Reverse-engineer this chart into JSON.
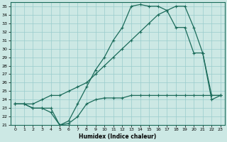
{
  "xlabel": "Humidex (Indice chaleur)",
  "bg_color": "#cce8e4",
  "grid_color": "#99cccc",
  "line_color": "#1a6b5a",
  "xlim": [
    -0.5,
    23.5
  ],
  "ylim": [
    21,
    35.5
  ],
  "xticks": [
    0,
    1,
    2,
    3,
    4,
    5,
    6,
    7,
    8,
    9,
    10,
    11,
    12,
    13,
    14,
    15,
    16,
    17,
    18,
    19,
    20,
    21,
    22,
    23
  ],
  "yticks": [
    21,
    22,
    23,
    24,
    25,
    26,
    27,
    28,
    29,
    30,
    31,
    32,
    33,
    34,
    35
  ],
  "line1_x": [
    0,
    1,
    2,
    3,
    4,
    5,
    6,
    7,
    8,
    9,
    10,
    11,
    12,
    13,
    14,
    15,
    16,
    17,
    18,
    19,
    20,
    21,
    22,
    23
  ],
  "line1_y": [
    23.5,
    23.5,
    23.0,
    23.0,
    23.0,
    21.0,
    21.2,
    22.0,
    23.5,
    24.0,
    24.2,
    24.2,
    24.2,
    24.5,
    24.5,
    24.5,
    24.5,
    24.5,
    24.5,
    24.5,
    24.5,
    24.5,
    24.5,
    24.5
  ],
  "line2_x": [
    0,
    1,
    2,
    3,
    4,
    5,
    6,
    7,
    8,
    9,
    10,
    11,
    12,
    13,
    14,
    15,
    16,
    17,
    18,
    19,
    20,
    21,
    22,
    23
  ],
  "line2_y": [
    23.5,
    23.5,
    23.0,
    23.0,
    22.5,
    21.0,
    21.5,
    23.5,
    25.5,
    27.5,
    29.0,
    31.0,
    32.5,
    35.0,
    35.2,
    35.0,
    35.0,
    34.5,
    32.5,
    32.5,
    29.5,
    29.5,
    24.0,
    24.5
  ],
  "line3_x": [
    0,
    1,
    2,
    3,
    4,
    5,
    6,
    7,
    8,
    9,
    10,
    11,
    12,
    13,
    14,
    15,
    16,
    17,
    18,
    19,
    20,
    21,
    22,
    23
  ],
  "line3_y": [
    23.5,
    23.5,
    23.5,
    24.0,
    24.5,
    24.5,
    25.0,
    25.5,
    26.0,
    27.0,
    28.0,
    29.0,
    30.0,
    31.0,
    32.0,
    33.0,
    34.0,
    34.5,
    35.0,
    35.0,
    32.5,
    29.5,
    24.5,
    24.5
  ]
}
